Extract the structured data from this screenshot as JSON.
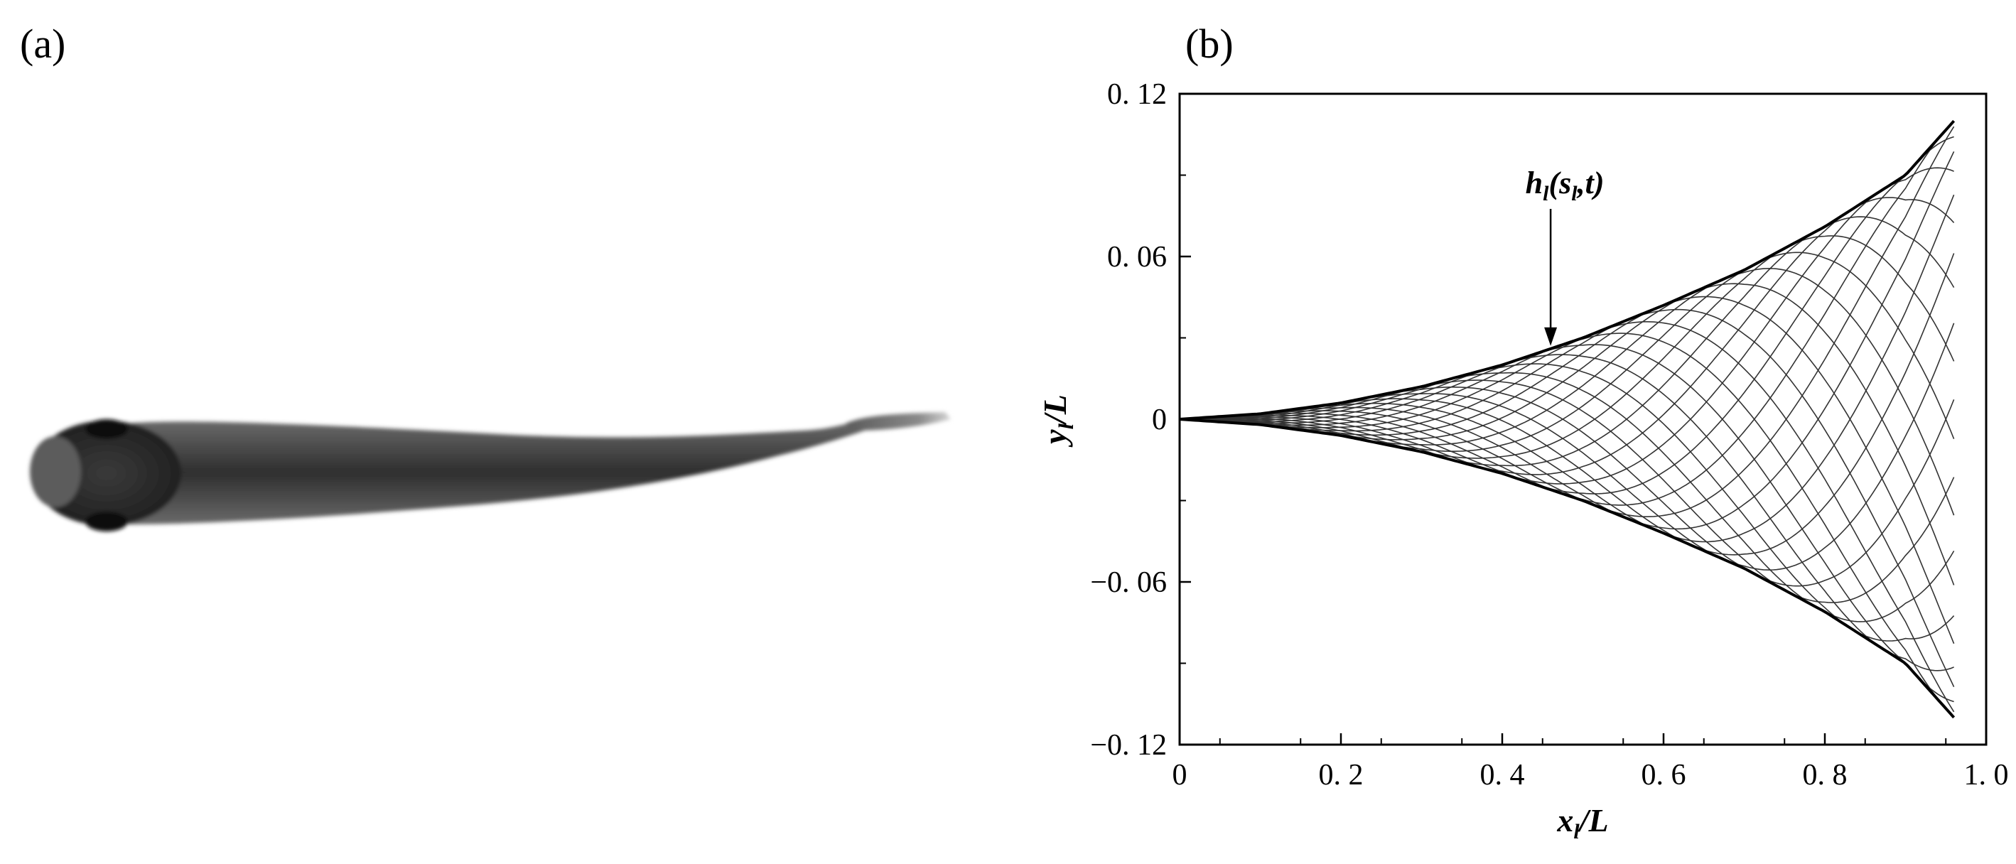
{
  "panels": {
    "a_label": "(a)",
    "b_label": "(b)"
  },
  "chart_data": {
    "type": "line",
    "xlabel_main": "x",
    "xlabel_sub": "l",
    "xlabel_tail": "/L",
    "ylabel_main": "y",
    "ylabel_sub": "l",
    "ylabel_tail": "/L",
    "xlim": [
      0,
      1.0
    ],
    "ylim": [
      -0.12,
      0.12
    ],
    "x_ticks": [
      0,
      0.2,
      0.4,
      0.6,
      0.8,
      1.0
    ],
    "x_tick_labels": [
      "0",
      "0. 2",
      "0. 4",
      "0. 6",
      "0. 8",
      "1. 0"
    ],
    "y_ticks": [
      0.12,
      0.06,
      0,
      -0.06,
      -0.12
    ],
    "y_tick_labels": [
      "0. 12",
      "0. 06",
      "0",
      "−0. 06",
      "−0. 12"
    ],
    "annotation": {
      "h": "h",
      "h_sub": "l",
      "open": "(",
      "s": "s",
      "s_sub": "l",
      "tail": ",t)",
      "x": 0.46,
      "y": 0.024
    },
    "envelope": {
      "x": [
        0,
        0.1,
        0.2,
        0.3,
        0.4,
        0.5,
        0.6,
        0.7,
        0.8,
        0.9,
        0.96
      ],
      "y": [
        0,
        0.002,
        0.006,
        0.012,
        0.02,
        0.03,
        0.042,
        0.055,
        0.071,
        0.09,
        0.11
      ]
    },
    "wave": {
      "x_end": 0.96,
      "wavelength": 0.95,
      "amplitude_coeffs": [
        0.02,
        -0.08,
        0.16
      ],
      "phase_count": 24
    }
  }
}
